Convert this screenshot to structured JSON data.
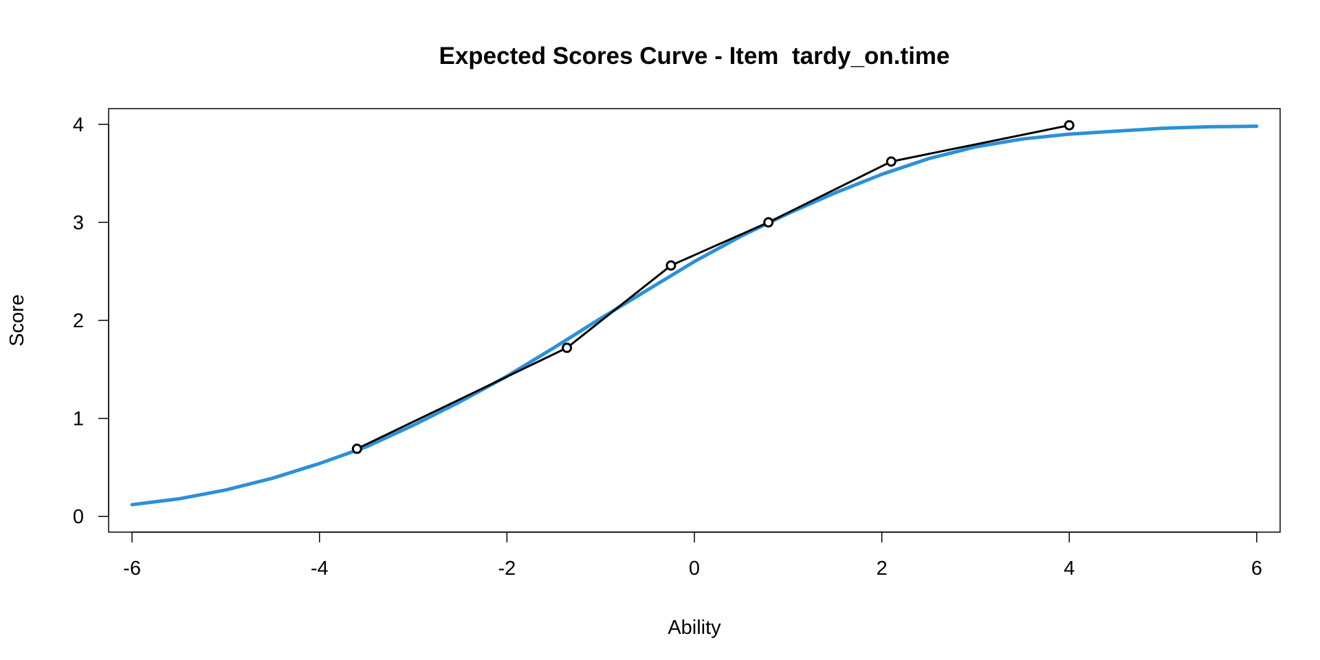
{
  "chart_data": {
    "type": "line",
    "title": "Expected Scores Curve - Item  tardy_on.time",
    "xlabel": "Ability",
    "ylabel": "Score",
    "xlim": [
      -6.25,
      6.25
    ],
    "ylim": [
      -0.16,
      4.16
    ],
    "xticks": [
      -6,
      -4,
      -2,
      0,
      2,
      4,
      6
    ],
    "yticks": [
      0,
      1,
      2,
      3,
      4
    ],
    "grid": false,
    "legend": "none",
    "series": [
      {
        "kind": "curve",
        "color": "#2B90D9",
        "x": [
          -6,
          -5.5,
          -5,
          -4.5,
          -4,
          -3.5,
          -3,
          -2.5,
          -2,
          -1.5,
          -1,
          -0.5,
          0,
          0.5,
          1,
          1.5,
          2,
          2.5,
          3,
          3.5,
          4,
          4.5,
          5,
          5.5,
          6
        ],
        "values": [
          0.12,
          0.18,
          0.27,
          0.39,
          0.54,
          0.71,
          0.93,
          1.17,
          1.43,
          1.72,
          2.02,
          2.31,
          2.6,
          2.86,
          3.09,
          3.3,
          3.49,
          3.65,
          3.77,
          3.85,
          3.9,
          3.93,
          3.96,
          3.975,
          3.98
        ]
      },
      {
        "kind": "observed",
        "color": "#000000",
        "x": [
          -3.6,
          -1.36,
          -0.25,
          0.79,
          2.1,
          4.0
        ],
        "values": [
          0.69,
          1.72,
          2.56,
          3.0,
          3.62,
          3.99
        ]
      }
    ]
  }
}
